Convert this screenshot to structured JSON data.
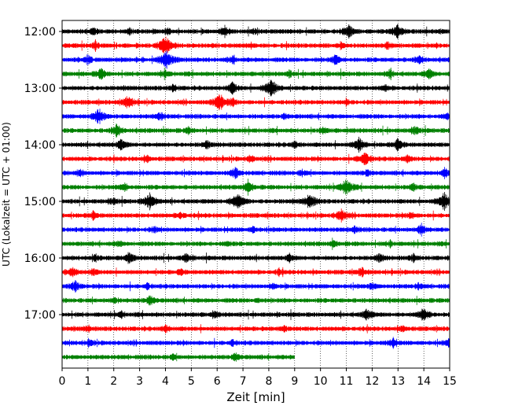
{
  "chart_data": {
    "type": "line",
    "title": "",
    "xlabel": "Zeit  [min]",
    "ylabel": "UTC (Lokalzeit = UTC + 01:00)",
    "xlim": [
      0,
      15
    ],
    "xticks": [
      "0",
      "1",
      "2",
      "3",
      "4",
      "5",
      "6",
      "7",
      "8",
      "9",
      "10",
      "11",
      "12",
      "13",
      "14",
      "15"
    ],
    "yticks": [
      "12:00",
      "13:00",
      "14:00",
      "15:00",
      "16:00",
      "17:00"
    ],
    "grid": "vertical dotted",
    "trace_interval_minutes": 15,
    "colors": [
      "#000000",
      "#ff0000",
      "#0000ff",
      "#008000"
    ],
    "series": [
      {
        "start": "12:00",
        "color": "#000000",
        "end_min": 15,
        "events": [
          [
            1.2,
            0.35
          ],
          [
            2.6,
            0.3
          ],
          [
            4.1,
            0.3
          ],
          [
            6.3,
            0.55
          ],
          [
            7.5,
            0.35
          ],
          [
            11.1,
            0.65
          ],
          [
            13.0,
            0.7
          ]
        ]
      },
      {
        "start": "12:15",
        "color": "#ff0000",
        "end_min": 15,
        "events": [
          [
            1.3,
            0.4
          ],
          [
            4.0,
            1.0
          ],
          [
            7.3,
            0.3
          ],
          [
            10.8,
            0.35
          ],
          [
            12.6,
            0.3
          ]
        ]
      },
      {
        "start": "12:30",
        "color": "#0000ff",
        "end_min": 15,
        "events": [
          [
            1.0,
            0.45
          ],
          [
            4.05,
            1.0
          ],
          [
            6.6,
            0.35
          ],
          [
            10.6,
            0.5
          ],
          [
            13.8,
            0.45
          ]
        ]
      },
      {
        "start": "12:45",
        "color": "#008000",
        "end_min": 15,
        "events": [
          [
            1.5,
            0.55
          ],
          [
            4.0,
            0.35
          ],
          [
            8.8,
            0.3
          ],
          [
            12.7,
            0.4
          ],
          [
            14.2,
            0.5
          ]
        ]
      },
      {
        "start": "13:00",
        "color": "#000000",
        "end_min": 15,
        "events": [
          [
            4.3,
            0.35
          ],
          [
            6.6,
            0.6
          ],
          [
            8.1,
            0.95
          ],
          [
            12.5,
            0.3
          ]
        ]
      },
      {
        "start": "13:15",
        "color": "#ff0000",
        "end_min": 15,
        "events": [
          [
            2.55,
            0.7
          ],
          [
            6.1,
            0.9
          ],
          [
            6.6,
            0.35
          ],
          [
            11.0,
            0.25
          ]
        ]
      },
      {
        "start": "13:30",
        "color": "#0000ff",
        "end_min": 15,
        "events": [
          [
            1.4,
            0.8
          ],
          [
            3.8,
            0.45
          ],
          [
            8.6,
            0.3
          ],
          [
            14.9,
            0.4
          ]
        ]
      },
      {
        "start": "13:45",
        "color": "#008000",
        "end_min": 15,
        "events": [
          [
            2.1,
            0.65
          ],
          [
            4.9,
            0.3
          ],
          [
            10.1,
            0.3
          ],
          [
            13.7,
            0.45
          ]
        ]
      },
      {
        "start": "14:00",
        "color": "#000000",
        "end_min": 15,
        "events": [
          [
            2.3,
            0.55
          ],
          [
            5.6,
            0.35
          ],
          [
            9.0,
            0.35
          ],
          [
            11.5,
            0.75
          ],
          [
            13.0,
            0.6
          ]
        ]
      },
      {
        "start": "14:15",
        "color": "#ff0000",
        "end_min": 15,
        "events": [
          [
            3.3,
            0.3
          ],
          [
            7.3,
            0.35
          ],
          [
            11.7,
            0.8
          ],
          [
            13.4,
            0.4
          ]
        ]
      },
      {
        "start": "14:30",
        "color": "#0000ff",
        "end_min": 15,
        "events": [
          [
            0.7,
            0.35
          ],
          [
            6.7,
            0.55
          ],
          [
            9.3,
            0.3
          ],
          [
            11.8,
            0.4
          ],
          [
            14.8,
            0.45
          ]
        ]
      },
      {
        "start": "14:45",
        "color": "#008000",
        "end_min": 15,
        "events": [
          [
            2.4,
            0.45
          ],
          [
            7.2,
            0.55
          ],
          [
            11.0,
            0.85
          ],
          [
            13.6,
            0.35
          ]
        ]
      },
      {
        "start": "15:00",
        "color": "#000000",
        "end_min": 15,
        "events": [
          [
            2.0,
            0.35
          ],
          [
            3.4,
            0.85
          ],
          [
            6.8,
            0.95
          ],
          [
            9.6,
            0.8
          ],
          [
            14.8,
            0.95
          ]
        ]
      },
      {
        "start": "15:15",
        "color": "#ff0000",
        "end_min": 15,
        "events": [
          [
            1.2,
            0.4
          ],
          [
            4.6,
            0.35
          ],
          [
            10.8,
            0.65
          ],
          [
            13.5,
            0.35
          ]
        ]
      },
      {
        "start": "15:30",
        "color": "#0000ff",
        "end_min": 15,
        "events": [
          [
            3.6,
            0.3
          ],
          [
            7.4,
            0.3
          ],
          [
            11.3,
            0.35
          ],
          [
            13.9,
            0.55
          ]
        ]
      },
      {
        "start": "15:45",
        "color": "#008000",
        "end_min": 15,
        "events": [
          [
            2.2,
            0.3
          ],
          [
            6.4,
            0.3
          ],
          [
            10.5,
            0.3
          ],
          [
            12.7,
            0.3
          ]
        ]
      },
      {
        "start": "16:00",
        "color": "#000000",
        "end_min": 15,
        "events": [
          [
            1.3,
            0.35
          ],
          [
            2.6,
            0.55
          ],
          [
            4.8,
            0.45
          ],
          [
            8.8,
            0.35
          ],
          [
            12.3,
            0.4
          ],
          [
            13.6,
            0.35
          ]
        ]
      },
      {
        "start": "16:15",
        "color": "#ff0000",
        "end_min": 15,
        "events": [
          [
            0.4,
            0.55
          ],
          [
            1.2,
            0.35
          ],
          [
            4.6,
            0.3
          ],
          [
            8.4,
            0.3
          ],
          [
            11.6,
            0.45
          ]
        ]
      },
      {
        "start": "16:30",
        "color": "#0000ff",
        "end_min": 15,
        "events": [
          [
            0.5,
            0.55
          ],
          [
            3.3,
            0.3
          ],
          [
            8.2,
            0.3
          ],
          [
            12.0,
            0.35
          ],
          [
            13.8,
            0.3
          ]
        ]
      },
      {
        "start": "16:45",
        "color": "#008000",
        "end_min": 15,
        "events": [
          [
            2.0,
            0.3
          ],
          [
            3.4,
            0.55
          ],
          [
            7.6,
            0.25
          ]
        ]
      },
      {
        "start": "17:00",
        "color": "#000000",
        "end_min": 15,
        "events": [
          [
            2.3,
            0.3
          ],
          [
            5.9,
            0.3
          ],
          [
            11.8,
            0.6
          ],
          [
            14.0,
            0.75
          ]
        ]
      },
      {
        "start": "17:15",
        "color": "#ff0000",
        "end_min": 15,
        "events": [
          [
            1.0,
            0.3
          ],
          [
            4.0,
            0.35
          ],
          [
            8.6,
            0.3
          ],
          [
            13.2,
            0.3
          ]
        ]
      },
      {
        "start": "17:30",
        "color": "#0000ff",
        "end_min": 15,
        "events": [
          [
            1.1,
            0.3
          ],
          [
            6.6,
            0.3
          ],
          [
            12.8,
            0.45
          ],
          [
            15.0,
            0.45
          ]
        ]
      },
      {
        "start": "17:45",
        "color": "#008000",
        "end_min": 9,
        "events": [
          [
            6.7,
            0.45
          ],
          [
            4.3,
            0.25
          ]
        ]
      }
    ]
  }
}
